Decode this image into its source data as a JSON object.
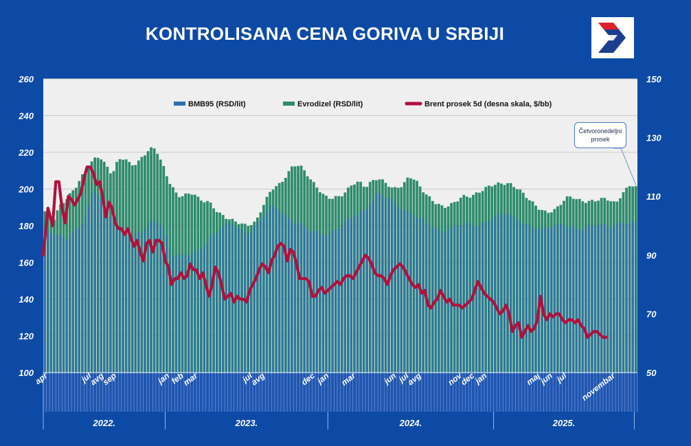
{
  "title": "KONTROLISANA CENA GORIVA U SRBIJI",
  "callout": {
    "line1": "Četvoronedeljni",
    "line2": "prosek"
  },
  "colors": {
    "background": "#0c4aa6",
    "plot_bg": "#efefef",
    "bmb95": "#2f6fb0",
    "diesel": "#2e8b6c",
    "brent": "#b0103c",
    "logo_red": "#e0202a",
    "logo_blue": "#1a3f8f"
  },
  "chart_data": {
    "type": "bar",
    "title": "KONTROLISANA CENA GORIVA U SRBIJI",
    "left_axis": {
      "min": 100,
      "max": 260,
      "ticks": [
        100,
        120,
        140,
        160,
        180,
        200,
        220,
        240,
        260
      ]
    },
    "right_axis": {
      "min": 50,
      "max": 150,
      "ticks": [
        50,
        70,
        90,
        110,
        130,
        150
      ]
    },
    "legend": [
      "BMB95 (RSD/lit)",
      "Evrodizel (RSD/lit)",
      "Brent prosek  5d (desna skala, $/bb)"
    ],
    "years": [
      {
        "label": "2022.",
        "start_week": 0,
        "end_week": 39
      },
      {
        "label": "2023.",
        "start_week": 39,
        "end_week": 91
      },
      {
        "label": "2024.",
        "start_week": 91,
        "end_week": 144
      },
      {
        "label": "2025.",
        "start_week": 144,
        "end_week": 189
      }
    ],
    "month_labels": [
      {
        "label": "apr",
        "week": 1.5
      },
      {
        "label": "jul",
        "week": 15.5
      },
      {
        "label": "avg",
        "week": 19.5
      },
      {
        "label": "sep",
        "week": 23.5
      },
      {
        "label": "jan",
        "week": 40.5
      },
      {
        "label": "feb",
        "week": 45
      },
      {
        "label": "mar",
        "week": 49.5
      },
      {
        "label": "jul",
        "week": 67
      },
      {
        "label": "avg",
        "week": 71
      },
      {
        "label": "dec",
        "week": 87
      },
      {
        "label": "jan",
        "week": 91.5
      },
      {
        "label": "mar",
        "week": 100
      },
      {
        "label": "jun",
        "week": 113
      },
      {
        "label": "jul",
        "week": 117
      },
      {
        "label": "avg",
        "week": 121
      },
      {
        "label": "nov",
        "week": 134
      },
      {
        "label": "dec",
        "week": 138
      },
      {
        "label": "jan",
        "week": 142
      },
      {
        "label": "maj",
        "week": 159
      },
      {
        "label": "jun",
        "week": 163
      },
      {
        "label": "jul",
        "week": 167.5
      },
      {
        "label": "novembar",
        "week": 183
      }
    ],
    "bmb95_points": [
      [
        0,
        178
      ],
      [
        8,
        173
      ],
      [
        12,
        180
      ],
      [
        14,
        187
      ],
      [
        16,
        200
      ],
      [
        18,
        197
      ],
      [
        20,
        190
      ],
      [
        22,
        184
      ],
      [
        25,
        177
      ],
      [
        28,
        173
      ],
      [
        30,
        176
      ],
      [
        33,
        179
      ],
      [
        35,
        183
      ],
      [
        37,
        182
      ],
      [
        39,
        178
      ],
      [
        41,
        164
      ],
      [
        44,
        164
      ],
      [
        48,
        165
      ],
      [
        52,
        170
      ],
      [
        56,
        178
      ],
      [
        60,
        182
      ],
      [
        63,
        178
      ],
      [
        66,
        176
      ],
      [
        69,
        182
      ],
      [
        72,
        190
      ],
      [
        75,
        190
      ],
      [
        78,
        184
      ],
      [
        82,
        181
      ],
      [
        85,
        178
      ],
      [
        88,
        176
      ],
      [
        91,
        175
      ],
      [
        94,
        178
      ],
      [
        97,
        183
      ],
      [
        100,
        186
      ],
      [
        103,
        188
      ],
      [
        105,
        193
      ],
      [
        107,
        198
      ],
      [
        109,
        197
      ],
      [
        112,
        193
      ],
      [
        115,
        189
      ],
      [
        118,
        186
      ],
      [
        121,
        184
      ],
      [
        124,
        180
      ],
      [
        127,
        177
      ],
      [
        130,
        178
      ],
      [
        133,
        181
      ],
      [
        136,
        181
      ],
      [
        139,
        180
      ],
      [
        142,
        182
      ],
      [
        145,
        186
      ],
      [
        148,
        187
      ],
      [
        151,
        184
      ],
      [
        154,
        181
      ],
      [
        157,
        179
      ],
      [
        160,
        178
      ],
      [
        163,
        180
      ],
      [
        166,
        181
      ],
      [
        169,
        179
      ],
      [
        172,
        178
      ],
      [
        175,
        180
      ],
      [
        178,
        181
      ],
      [
        181,
        179
      ],
      [
        184,
        181
      ],
      [
        187,
        182
      ],
      [
        189,
        182
      ]
    ],
    "diesel_points": [
      [
        0,
        189
      ],
      [
        3,
        182
      ],
      [
        5,
        190
      ],
      [
        8,
        196
      ],
      [
        10,
        200
      ],
      [
        12,
        206
      ],
      [
        14,
        211
      ],
      [
        16,
        216
      ],
      [
        18,
        218
      ],
      [
        20,
        213
      ],
      [
        22,
        208
      ],
      [
        24,
        216
      ],
      [
        26,
        217
      ],
      [
        28,
        213
      ],
      [
        30,
        214
      ],
      [
        32,
        218
      ],
      [
        34,
        222
      ],
      [
        36,
        222
      ],
      [
        38,
        214
      ],
      [
        40,
        205
      ],
      [
        43,
        196
      ],
      [
        46,
        197
      ],
      [
        48,
        198
      ],
      [
        50,
        194
      ],
      [
        53,
        193
      ],
      [
        56,
        187
      ],
      [
        59,
        184
      ],
      [
        62,
        182
      ],
      [
        65,
        180
      ],
      [
        68,
        182
      ],
      [
        70,
        190
      ],
      [
        73,
        200
      ],
      [
        76,
        203
      ],
      [
        78,
        208
      ],
      [
        80,
        213
      ],
      [
        82,
        213
      ],
      [
        84,
        209
      ],
      [
        86,
        204
      ],
      [
        88,
        200
      ],
      [
        90,
        196
      ],
      [
        92,
        195
      ],
      [
        95,
        196
      ],
      [
        97,
        199
      ],
      [
        99,
        203
      ],
      [
        101,
        204
      ],
      [
        103,
        201
      ],
      [
        105,
        204
      ],
      [
        107,
        206
      ],
      [
        109,
        204
      ],
      [
        112,
        200
      ],
      [
        115,
        202
      ],
      [
        117,
        207
      ],
      [
        119,
        205
      ],
      [
        121,
        200
      ],
      [
        123,
        196
      ],
      [
        125,
        193
      ],
      [
        128,
        190
      ],
      [
        131,
        192
      ],
      [
        134,
        196
      ],
      [
        137,
        196
      ],
      [
        140,
        199
      ],
      [
        143,
        202
      ],
      [
        146,
        203
      ],
      [
        149,
        203
      ],
      [
        152,
        200
      ],
      [
        155,
        195
      ],
      [
        158,
        190
      ],
      [
        161,
        187
      ],
      [
        164,
        189
      ],
      [
        167,
        195
      ],
      [
        169,
        196
      ],
      [
        171,
        194
      ],
      [
        174,
        193
      ],
      [
        177,
        194
      ],
      [
        180,
        195
      ],
      [
        183,
        192
      ],
      [
        185,
        197
      ],
      [
        187,
        201
      ],
      [
        188,
        203
      ],
      [
        189,
        201
      ]
    ],
    "brent_points": [
      [
        0,
        90
      ],
      [
        1.5,
        106
      ],
      [
        3,
        100
      ],
      [
        4,
        115
      ],
      [
        5,
        115
      ],
      [
        6,
        106
      ],
      [
        7,
        101
      ],
      [
        8,
        110
      ],
      [
        9,
        109
      ],
      [
        10,
        107
      ],
      [
        11,
        109
      ],
      [
        12,
        111
      ],
      [
        13,
        116
      ],
      [
        14,
        120
      ],
      [
        15,
        120
      ],
      [
        16,
        118
      ],
      [
        17,
        114
      ],
      [
        18,
        115
      ],
      [
        19,
        110
      ],
      [
        20,
        103
      ],
      [
        21,
        108
      ],
      [
        22,
        106
      ],
      [
        23,
        101
      ],
      [
        24,
        99
      ],
      [
        25,
        99
      ],
      [
        26,
        97
      ],
      [
        27,
        99
      ],
      [
        28,
        96
      ],
      [
        29,
        93
      ],
      [
        30,
        95
      ],
      [
        31,
        91
      ],
      [
        32,
        88
      ],
      [
        33,
        94
      ],
      [
        34,
        95
      ],
      [
        35,
        91
      ],
      [
        36,
        95
      ],
      [
        37,
        95
      ],
      [
        38,
        94
      ],
      [
        39,
        88
      ],
      [
        40,
        86
      ],
      [
        41,
        80
      ],
      [
        42,
        82
      ],
      [
        43,
        82
      ],
      [
        44,
        84
      ],
      [
        45,
        82
      ],
      [
        46,
        83
      ],
      [
        47,
        87
      ],
      [
        48,
        85
      ],
      [
        49,
        85
      ],
      [
        50,
        82
      ],
      [
        51,
        84
      ],
      [
        52,
        80
      ],
      [
        53,
        76
      ],
      [
        54,
        80
      ],
      [
        55,
        86
      ],
      [
        56,
        84
      ],
      [
        57,
        80
      ],
      [
        58,
        75
      ],
      [
        59,
        76
      ],
      [
        60,
        77
      ],
      [
        61,
        74
      ],
      [
        62,
        76
      ],
      [
        63,
        75
      ],
      [
        64,
        75
      ],
      [
        65,
        74
      ],
      [
        66,
        78
      ],
      [
        67,
        80
      ],
      [
        68,
        82
      ],
      [
        69,
        85
      ],
      [
        70,
        87
      ],
      [
        71,
        86
      ],
      [
        72,
        84
      ],
      [
        73,
        88
      ],
      [
        74,
        90
      ],
      [
        75,
        93
      ],
      [
        76,
        94
      ],
      [
        77,
        93
      ],
      [
        78,
        88
      ],
      [
        79,
        92
      ],
      [
        80,
        91
      ],
      [
        81,
        87
      ],
      [
        82,
        82
      ],
      [
        83,
        82
      ],
      [
        84,
        82
      ],
      [
        85,
        81
      ],
      [
        86,
        76
      ],
      [
        87,
        76
      ],
      [
        88,
        78
      ],
      [
        89,
        79
      ],
      [
        90,
        77
      ],
      [
        91,
        78
      ],
      [
        92,
        79
      ],
      [
        93,
        80
      ],
      [
        94,
        81
      ],
      [
        95,
        80
      ],
      [
        96,
        82
      ],
      [
        97,
        83
      ],
      [
        98,
        83
      ],
      [
        99,
        82
      ],
      [
        100,
        84
      ],
      [
        101,
        86
      ],
      [
        102,
        88
      ],
      [
        103,
        90
      ],
      [
        104,
        89
      ],
      [
        105,
        87
      ],
      [
        106,
        84
      ],
      [
        107,
        83
      ],
      [
        108,
        83
      ],
      [
        109,
        82
      ],
      [
        110,
        80
      ],
      [
        111,
        83
      ],
      [
        112,
        85
      ],
      [
        113,
        86
      ],
      [
        114,
        87
      ],
      [
        115,
        86
      ],
      [
        116,
        84
      ],
      [
        117,
        82
      ],
      [
        118,
        80
      ],
      [
        119,
        79
      ],
      [
        120,
        80
      ],
      [
        121,
        77
      ],
      [
        122,
        78
      ],
      [
        123,
        73
      ],
      [
        124,
        72
      ],
      [
        125,
        74
      ],
      [
        126,
        75
      ],
      [
        127,
        78
      ],
      [
        128,
        76
      ],
      [
        129,
        74
      ],
      [
        130,
        75
      ],
      [
        131,
        73
      ],
      [
        132,
        73
      ],
      [
        133,
        73
      ],
      [
        134,
        72
      ],
      [
        135,
        73
      ],
      [
        136,
        74
      ],
      [
        137,
        75
      ],
      [
        138,
        78
      ],
      [
        139,
        81
      ],
      [
        140,
        79
      ],
      [
        141,
        77
      ],
      [
        142,
        76
      ],
      [
        143,
        75
      ],
      [
        144,
        74
      ],
      [
        145,
        72
      ],
      [
        146,
        70
      ],
      [
        147,
        71
      ],
      [
        148,
        73
      ],
      [
        149,
        70
      ],
      [
        150,
        64
      ],
      [
        151,
        66
      ],
      [
        152,
        67
      ],
      [
        153,
        62
      ],
      [
        154,
        64
      ],
      [
        155,
        66
      ],
      [
        156,
        64
      ],
      [
        157,
        65
      ],
      [
        158,
        68
      ],
      [
        159,
        76
      ],
      [
        160,
        70
      ],
      [
        161,
        68
      ],
      [
        162,
        70
      ],
      [
        163,
        69
      ],
      [
        164,
        70
      ],
      [
        165,
        70
      ],
      [
        166,
        68
      ],
      [
        167,
        67
      ],
      [
        168,
        68
      ],
      [
        169,
        68
      ],
      [
        170,
        67
      ],
      [
        171,
        68
      ],
      [
        172,
        66
      ],
      [
        173,
        65
      ],
      [
        174,
        62
      ],
      [
        175,
        63
      ],
      [
        176,
        64
      ],
      [
        177,
        64
      ],
      [
        178,
        63
      ],
      [
        179,
        62
      ],
      [
        180,
        62
      ]
    ]
  }
}
